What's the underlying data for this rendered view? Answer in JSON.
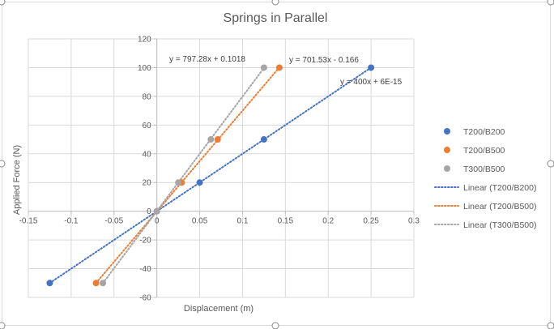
{
  "chart_data": {
    "type": "scatter",
    "title": "Springs in Parallel",
    "xlabel": "Displacement (m)",
    "ylabel": "Applied Force (N)",
    "xlim": [
      -0.15,
      0.3
    ],
    "ylim": [
      -60,
      120
    ],
    "x_ticks": [
      -0.15,
      -0.1,
      -0.05,
      0,
      0.05,
      0.1,
      0.15,
      0.2,
      0.25,
      0.3
    ],
    "x_tick_labels": [
      "-0.15",
      "-0.1",
      "-0.05",
      "0",
      "0.05",
      "0.1",
      "0.15",
      "0.2",
      "0.25",
      "0.3"
    ],
    "y_ticks": [
      -60,
      -40,
      -20,
      0,
      20,
      40,
      60,
      80,
      100,
      120
    ],
    "y_tick_labels": [
      "-60",
      "-40",
      "-20",
      "0",
      "20",
      "40",
      "60",
      "80",
      "100",
      "120"
    ],
    "grid": true,
    "legend_position": "right",
    "series": [
      {
        "name": "T200/B200",
        "color": "#4472c4",
        "x": [
          -0.125,
          0,
          0.05,
          0.125,
          0.25
        ],
        "y": [
          -50,
          0,
          20,
          50,
          100
        ],
        "trendline": {
          "name": "Linear (T200/B200)",
          "slope": 400,
          "intercept": 0,
          "equation": "y = 400x + 6E-15"
        }
      },
      {
        "name": "T200/B500",
        "color": "#ed7d31",
        "x": [
          -0.071,
          0,
          0.029,
          0.071,
          0.143
        ],
        "y": [
          -50,
          0,
          20,
          50,
          100
        ],
        "trendline": {
          "name": "Linear (T200/B500)",
          "slope": 701.53,
          "intercept": -0.166,
          "equation": "y = 701.53x - 0.166"
        }
      },
      {
        "name": "T300/B500",
        "color": "#a5a5a5",
        "x": [
          -0.063,
          0,
          0.025,
          0.063,
          0.125
        ],
        "y": [
          -50,
          0,
          20,
          50,
          100
        ],
        "trendline": {
          "name": "Linear (T300/B500)",
          "slope": 797.28,
          "intercept": 0.1018,
          "equation": "y = 797.28x + 0.1018"
        }
      }
    ]
  }
}
